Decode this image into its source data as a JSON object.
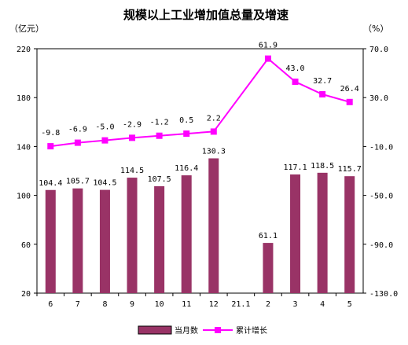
{
  "chart_data": {
    "type": "bar",
    "title": "规模以上工业增加值总量及增速",
    "y_left_unit": "（亿元）",
    "y_right_unit": "（%）",
    "categories": [
      "6",
      "7",
      "8",
      "9",
      "10",
      "11",
      "12",
      "21.1",
      "2",
      "3",
      "4",
      "5"
    ],
    "y_left": {
      "min": 20,
      "max": 220,
      "ticks": [
        "20",
        "60",
        "100",
        "140",
        "180",
        "220"
      ]
    },
    "y_right": {
      "min": -130,
      "max": 70,
      "ticks": [
        "-130.0",
        "-90.0",
        "-50.0",
        "-10.0",
        "30.0",
        "70.0"
      ]
    },
    "series": [
      {
        "name": "当月数",
        "type": "bar",
        "axis": "left",
        "color": "#993366",
        "values": [
          104.4,
          105.7,
          104.5,
          114.5,
          107.5,
          116.4,
          130.3,
          null,
          61.1,
          117.1,
          118.5,
          115.7
        ],
        "labels": [
          "104.4",
          "105.7",
          "104.5",
          "114.5",
          "107.5",
          "116.4",
          "130.3",
          "",
          "61.1",
          "117.1",
          "118.5",
          "115.7"
        ]
      },
      {
        "name": "累计增长",
        "type": "line",
        "axis": "right",
        "color": "#ff00ff",
        "values": [
          -9.8,
          -6.9,
          -5.0,
          -2.9,
          -1.2,
          0.5,
          2.2,
          null,
          61.9,
          43.0,
          32.7,
          26.4
        ],
        "labels": [
          "-9.8",
          "-6.9",
          "-5.0",
          "-2.9",
          "-1.2",
          "0.5",
          "2.2",
          "",
          "61.9",
          "43.0",
          "32.7",
          "26.4"
        ]
      }
    ],
    "legend": {
      "position": "bottom"
    },
    "grid": false
  }
}
